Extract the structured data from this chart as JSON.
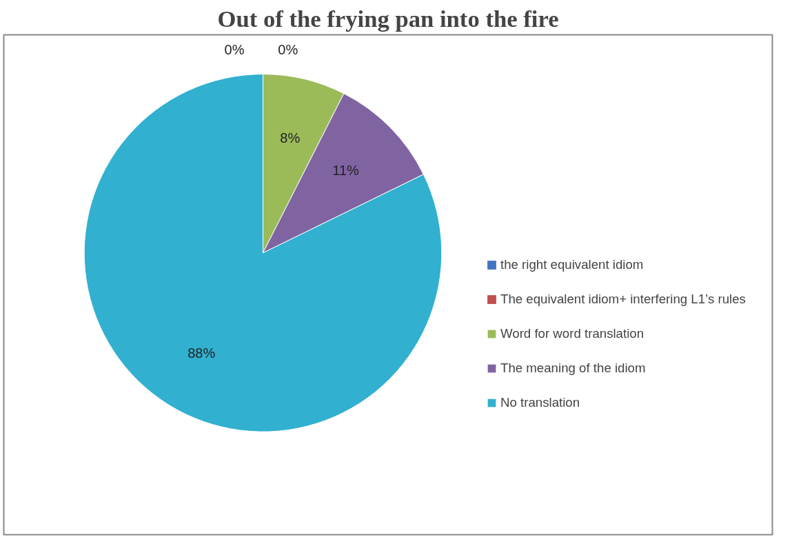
{
  "chart_data": {
    "type": "pie",
    "title": "Out of the frying pan into the fire",
    "categories": [
      "the right equivalent idiom",
      "The equivalent idiom+ interfering L1’s rules",
      "Word for word translation",
      "The meaning of the idiom",
      "No translation"
    ],
    "values": [
      0,
      0,
      8,
      11,
      88
    ],
    "colors": [
      "#4472c4",
      "#c0504d",
      "#9bbb59",
      "#8064a2",
      "#31b0d0"
    ],
    "value_labels": [
      "0%",
      "0%",
      "8%",
      "11%",
      "88%"
    ],
    "legend": "right"
  }
}
